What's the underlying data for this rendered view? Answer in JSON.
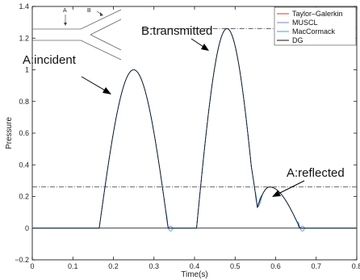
{
  "chart_data": {
    "type": "line",
    "title": "",
    "xlabel": "Time(s)",
    "ylabel": "Pressure",
    "xlim": [
      0,
      0.8
    ],
    "ylim": [
      -0.2,
      1.4
    ],
    "x_ticks": [
      0,
      0.1,
      0.2,
      0.3,
      0.4,
      0.5,
      0.6,
      0.7,
      0.8
    ],
    "x_tick_labels": [
      "0",
      "0.1",
      "0.2",
      "0.3",
      "0.4",
      "0.5",
      "0.6",
      "0.7",
      "0.8"
    ],
    "y_ticks": [
      -0.2,
      0,
      0.2,
      0.4,
      0.6,
      0.8,
      1,
      1.2,
      1.4
    ],
    "y_tick_labels": [
      "−0.2",
      "0",
      "0.2",
      "0.4",
      "0.6",
      "0.8",
      "1",
      "1.2",
      "1.4"
    ],
    "grid": false,
    "legend_position": "top-right",
    "series": [
      {
        "name": "Taylor–Galerkin",
        "color": "#e0302a"
      },
      {
        "name": "MUSCL",
        "color": "#8080c0"
      },
      {
        "name": "MacCormack",
        "color": "#30a8e0"
      },
      {
        "name": "DG",
        "color": "#111111"
      }
    ],
    "pulses": [
      {
        "label": "A:incident",
        "start": 0.165,
        "end": 0.335,
        "peak_time": 0.25,
        "peak": 1.0
      },
      {
        "label": "B:transmitted",
        "start": 0.405,
        "end": 0.555,
        "peak_time": 0.48,
        "peak": 1.26
      },
      {
        "label": "A:reflected",
        "start": 0.54,
        "end": 0.66,
        "peak_time": 0.585,
        "peak": 0.26
      }
    ],
    "reference_lines": [
      {
        "y": 1.26,
        "x_from": 0.27,
        "x_to": 0.8
      },
      {
        "y": 0.26,
        "x_from": 0.0,
        "x_to": 0.8
      }
    ],
    "inset_labels": [
      "A",
      "B"
    ]
  }
}
